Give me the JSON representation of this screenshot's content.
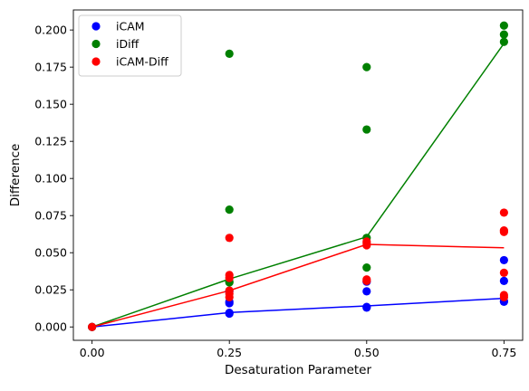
{
  "chart_data": {
    "type": "scatter",
    "xlabel": "Desaturation Parameter",
    "ylabel": "Difference",
    "xlim": [
      -0.034,
      0.784
    ],
    "ylim": [
      -0.009,
      0.2135
    ],
    "x_ticks": [
      0.0,
      0.25,
      0.5,
      0.75
    ],
    "x_tick_labels": [
      "0.00",
      "0.25",
      "0.50",
      "0.75"
    ],
    "y_ticks": [
      0.0,
      0.025,
      0.05,
      0.075,
      0.1,
      0.125,
      0.15,
      0.175,
      0.2
    ],
    "y_tick_labels": [
      "0.000",
      "0.025",
      "0.050",
      "0.075",
      "0.100",
      "0.125",
      "0.150",
      "0.175",
      "0.200"
    ],
    "grid": false,
    "legend_position": "top-left",
    "series": [
      {
        "name": "iCAM",
        "color": "#0000ff",
        "points": [
          [
            0.0,
            0.0
          ],
          [
            0.25,
            0.009
          ],
          [
            0.25,
            0.0095
          ],
          [
            0.25,
            0.016
          ],
          [
            0.25,
            0.017
          ],
          [
            0.25,
            0.024
          ],
          [
            0.5,
            0.013
          ],
          [
            0.5,
            0.0135
          ],
          [
            0.5,
            0.024
          ],
          [
            0.5,
            0.0305
          ],
          [
            0.75,
            0.017
          ],
          [
            0.75,
            0.0175
          ],
          [
            0.75,
            0.031
          ],
          [
            0.75,
            0.045
          ]
        ],
        "line": [
          [
            0.0,
            0.0
          ],
          [
            0.25,
            0.0097
          ],
          [
            0.5,
            0.0142
          ],
          [
            0.75,
            0.0193
          ]
        ]
      },
      {
        "name": "iDiff",
        "color": "#008000",
        "points": [
          [
            0.0,
            0.0
          ],
          [
            0.25,
            0.03
          ],
          [
            0.25,
            0.0305
          ],
          [
            0.25,
            0.079
          ],
          [
            0.25,
            0.184
          ],
          [
            0.5,
            0.04
          ],
          [
            0.5,
            0.06
          ],
          [
            0.5,
            0.133
          ],
          [
            0.5,
            0.175
          ],
          [
            0.75,
            0.192
          ],
          [
            0.75,
            0.197
          ],
          [
            0.75,
            0.203
          ]
        ],
        "line": [
          [
            0.0,
            0.0
          ],
          [
            0.25,
            0.0323
          ],
          [
            0.5,
            0.0607
          ],
          [
            0.75,
            0.191
          ]
        ]
      },
      {
        "name": "iCAM-Diff",
        "color": "#ff0000",
        "points": [
          [
            0.0,
            0.0
          ],
          [
            0.25,
            0.02
          ],
          [
            0.25,
            0.0225
          ],
          [
            0.25,
            0.0245
          ],
          [
            0.25,
            0.033
          ],
          [
            0.25,
            0.035
          ],
          [
            0.25,
            0.06
          ],
          [
            0.5,
            0.031
          ],
          [
            0.5,
            0.032
          ],
          [
            0.5,
            0.055
          ],
          [
            0.5,
            0.0565
          ],
          [
            0.5,
            0.0575
          ],
          [
            0.75,
            0.02
          ],
          [
            0.75,
            0.0215
          ],
          [
            0.75,
            0.0365
          ],
          [
            0.75,
            0.064
          ],
          [
            0.75,
            0.065
          ],
          [
            0.75,
            0.077
          ]
        ],
        "line": [
          [
            0.0,
            0.0
          ],
          [
            0.25,
            0.0245
          ],
          [
            0.5,
            0.0556
          ],
          [
            0.75,
            0.0533
          ]
        ]
      }
    ]
  }
}
